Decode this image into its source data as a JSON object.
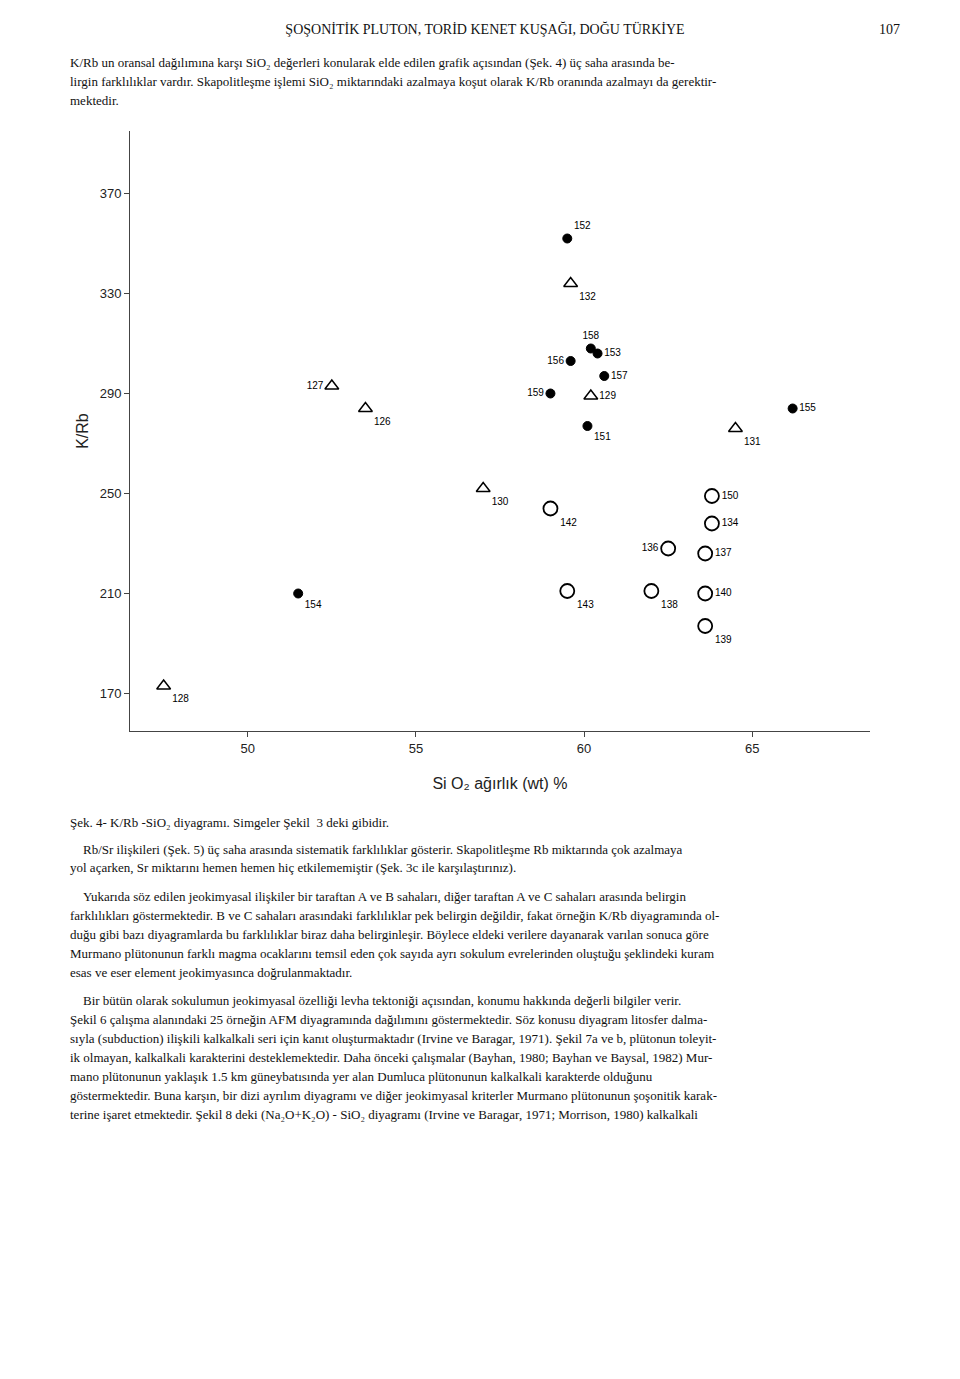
{
  "header_title": "ŞOŞONİTİK PLUTON, TORİD KENET KUŞAĞI, DOĞU TÜRKİYE",
  "header_page": "107",
  "text_above": "K/Rb un oransal dağılımına karşı SiO₂ değerleri konularak elde edilen grafik açısından (Şek. 4) üç saha arasında be-\nlirgin farklılıklar vardır. Skapolitleşme işlemi SiO₂ miktarındaki azalmaya koşut olarak K/Rb oranında azalmayı da gerektir-\nmektedir.",
  "caption": "Şek. 4- K/Rb -SiO₂ diyagramı. Simgeler Şekil  3 deki gibidir.",
  "text_below": [
    "    Rb/Sr ilişkileri (Şek. 5) üç saha arasında sistematik farklılıklar gösterir. Skapolitleşme Rb miktarında çok azalmaya\nyol açarken, Sr miktarını hemen hemen hiç etkilememiştir (Şek. 3c ile karşılaştırınız).",
    "    Yukarıda söz edilen jeokimyasal ilişkiler bir taraftan A ve B sahaları, diğer taraftan A ve C sahaları arasında belirgin\nfarklılıkları göstermektedir. B ve C sahaları arasındaki farklılıklar pek belirgin değildir, fakat örneğin K/Rb diyagramında ol-\nduğu gibi bazı diyagramlarda bu farklılıklar biraz daha belirginleşir. Böylece eldeki verilere dayanarak varılan sonuca göre\nMurmano plütonunun farklı magma ocaklarını temsil eden çok sayıda ayrı sokulum evrelerinden oluştuğu şeklindeki kuram\nesas ve eser element jeokimyasınca doğrulanmaktadır.",
    "    Bir bütün olarak sokulumun jeokimyasal özelliği levha tektoniği açısından, konumu hakkında değerli bilgiler verir.\nŞekil 6 çalışma alanındaki 25 örneğin AFM diyagramında dağılımını göstermektedir. Söz konusu diyagram litosfer dalma-\nsıyla (subduction) ilişkili kalkalkali seri için kanıt oluşturmaktadır (Irvine ve Baragar, 1971). Şekil 7a ve b, plütonun toleyit-\nik olmayan, kalkalkali karakterini desteklemektedir. Daha önceki çalışmalar (Bayhan, 1980; Bayhan ve Baysal, 1982) Mur-\nmano plütonunun yaklaşık 1.5 km güneybatısında yer alan Dumluca plütonunun kalkalkali karakterde olduğunu\ngöstermektedir. Buna karşın, bir dizi ayrılım diyagramı ve diğer jeokimyasal kriterler Murmano plütonunun şoşonitik karak-\nterine işaret etmektedir. Şekil 8 deki (Na₂O+K₂O) - SiO₂ diyagramı (Irvine ve Baragar, 1971; Morrison, 1980) kalkalkali"
  ],
  "chart_data": {
    "type": "scatter",
    "xlabel": "Si O₂ ağırlık (wt) %",
    "ylabel": "K/Rb",
    "xlim": [
      46.5,
      68.5
    ],
    "ylim": [
      155,
      395
    ],
    "xticks": [
      50,
      55,
      60,
      65
    ],
    "yticks": [
      170,
      210,
      250,
      290,
      330,
      370
    ],
    "grid": false,
    "series": [
      {
        "marker": "circle",
        "color": "black",
        "x": [
          59.5,
          60.4,
          59.6,
          60.6,
          59.0,
          60.1,
          66.2,
          51.5,
          60.2
        ],
        "values": [
          352,
          306,
          303,
          297,
          290,
          277,
          284,
          210,
          308
        ],
        "labels": [
          "152",
          "153",
          "156",
          "157",
          "159",
          "151",
          "155",
          "154",
          "158"
        ]
      },
      {
        "marker": "triangle-up-open",
        "color": "black",
        "x": [
          59.6,
          52.5,
          53.5,
          60.2,
          57.0,
          64.5,
          47.5
        ],
        "values": [
          334,
          293,
          284,
          289,
          252,
          276,
          173
        ],
        "labels": [
          "132",
          "127",
          "126",
          "129",
          "130",
          "131",
          "128"
        ]
      },
      {
        "marker": "circle-open",
        "color": "black",
        "x": [
          59.0,
          63.8,
          63.8,
          62.5,
          63.6,
          59.5,
          62.0,
          63.6,
          63.6
        ],
        "values": [
          244,
          249,
          238,
          228,
          226,
          211,
          211,
          210,
          197
        ],
        "labels": [
          "142",
          "150",
          "134",
          "136",
          "137",
          "143",
          "138",
          "140",
          "139"
        ]
      }
    ]
  }
}
